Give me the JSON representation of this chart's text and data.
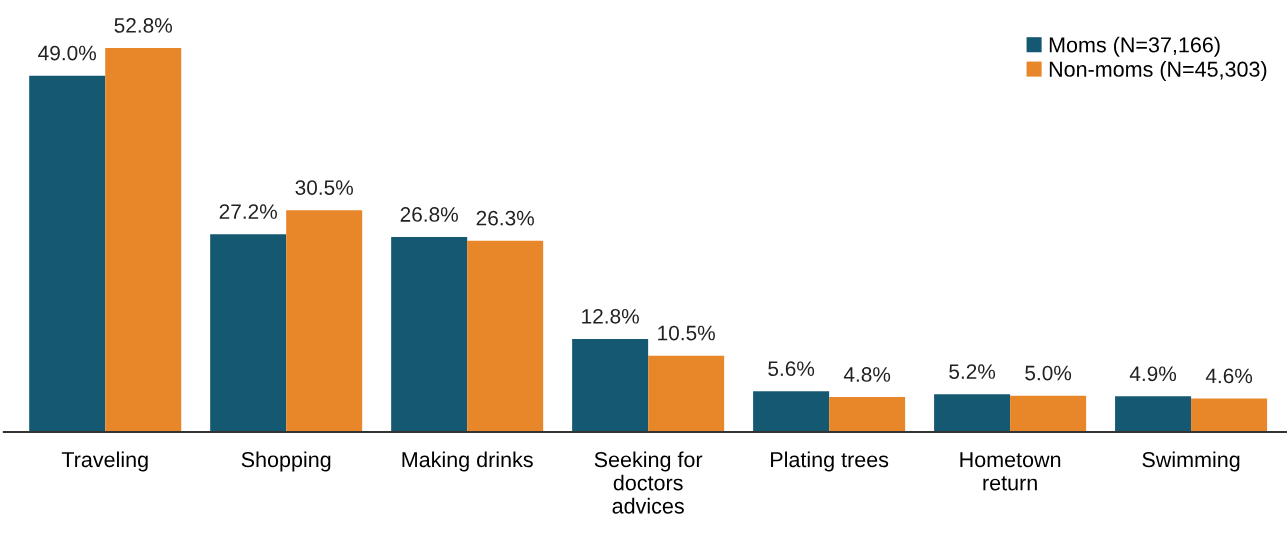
{
  "chart_data": {
    "type": "bar",
    "categories": [
      "Traveling",
      "Shopping",
      "Making drinks",
      "Seeking for\ndoctors\nadvices",
      "Plating trees",
      "Hometown\nreturn",
      "Swimming"
    ],
    "series": [
      {
        "name": "Moms (N=37,166)",
        "color": "#155872",
        "values": [
          49.0,
          27.2,
          26.8,
          12.8,
          5.6,
          5.2,
          4.9
        ],
        "value_labels": [
          "49.0%",
          "27.2%",
          "26.8%",
          "12.8%",
          "5.6%",
          "5.2%",
          "4.9%"
        ]
      },
      {
        "name": "Non-moms (N=45,303)",
        "color": "#e8862a",
        "values": [
          52.8,
          30.5,
          26.3,
          10.5,
          4.8,
          5.0,
          4.6
        ],
        "value_labels": [
          "52.8%",
          "30.5%",
          "26.3%",
          "10.5%",
          "4.8%",
          "5.0%",
          "4.6%"
        ]
      }
    ],
    "legend": "top right",
    "grid": false
  }
}
